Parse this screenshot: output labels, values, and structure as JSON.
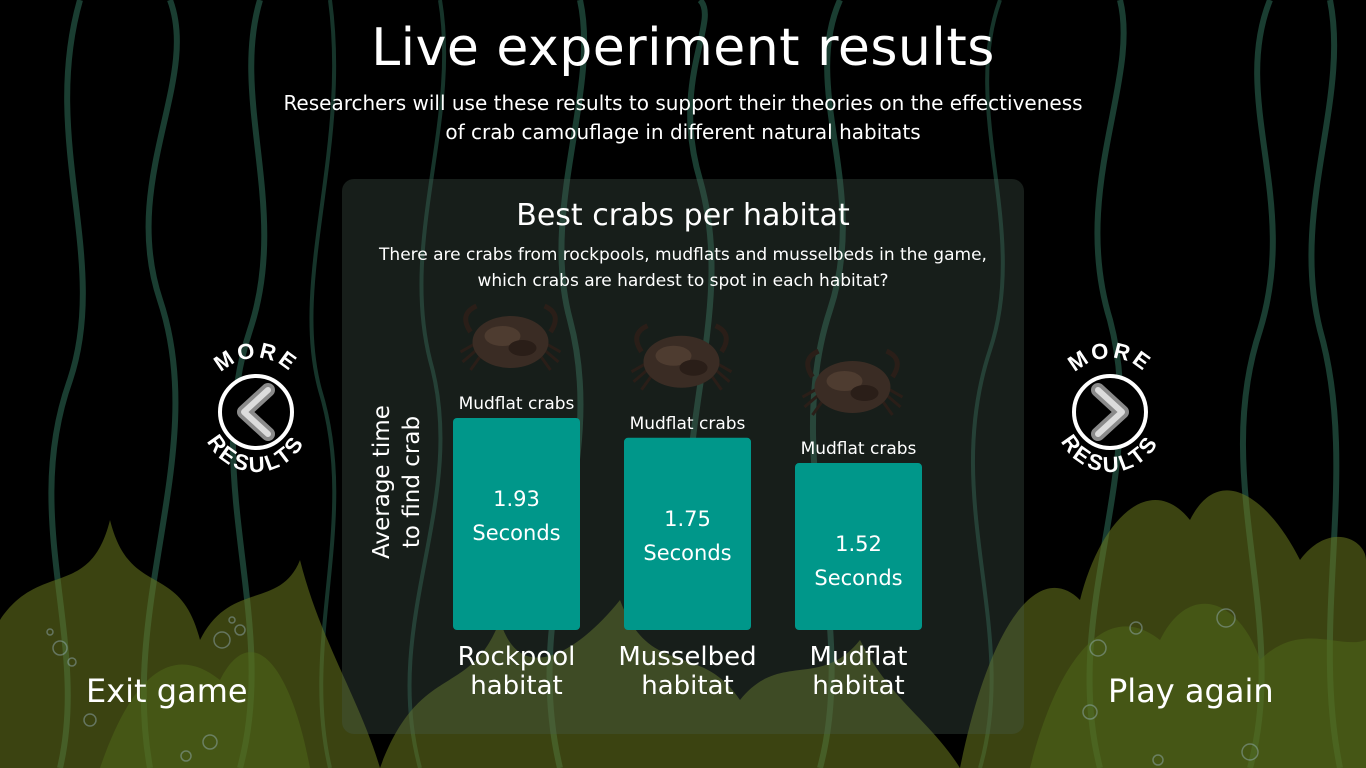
{
  "header": {
    "title": "Live experiment results",
    "subtitle": "Researchers will use these results to support their theories on the effectiveness of crab camouflage in different natural habitats"
  },
  "panel": {
    "title": "Best crabs per habitat",
    "description": "There are crabs from rockpools, mudflats and musselbeds in the game, which crabs are hardest to spot in each habitat?"
  },
  "nav": {
    "prev_label": "MORE RESULTS",
    "next_label": "MORE RESULTS"
  },
  "buttons": {
    "exit": "Exit game",
    "play_again": "Play again"
  },
  "colors": {
    "bar": "#00978a",
    "background": "#000000",
    "seaweed": "#6b7a1f"
  },
  "chart_data": {
    "type": "bar",
    "ylabel": "Average time to find crab",
    "ylabel_lines": [
      "Average time",
      "to find crab"
    ],
    "unit": "Seconds",
    "categories": [
      "Rockpool habitat",
      "Musselbed habitat",
      "Mudflat habitat"
    ],
    "category_lines": [
      [
        "Rockpool",
        "habitat"
      ],
      [
        "Musselbed",
        "habitat"
      ],
      [
        "Mudflat",
        "habitat"
      ]
    ],
    "crab_labels": [
      "Mudflat crabs",
      "Mudflat crabs",
      "Mudflat crabs"
    ],
    "values": [
      1.93,
      1.75,
      1.52
    ],
    "value_labels": [
      "1.93",
      "1.75",
      "1.52"
    ],
    "ylim": [
      0,
      1.93
    ]
  }
}
